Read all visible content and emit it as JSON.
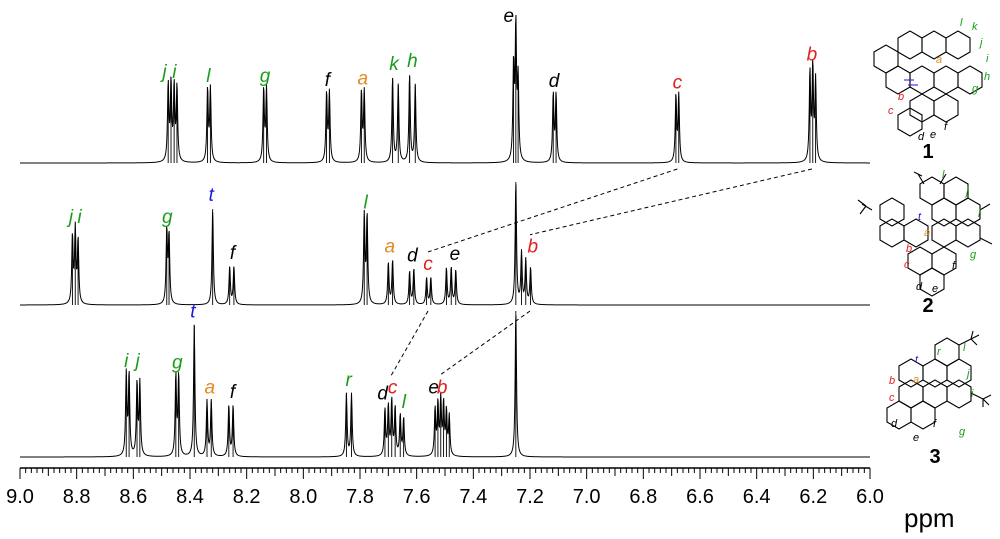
{
  "colors": {
    "black": "#000000",
    "orange": "#e08a1e",
    "red": "#e0201b",
    "green": "#1a9c1a",
    "blue": "#1a1adc"
  },
  "chart_data": {
    "type": "nmr_spectrum_stack",
    "x_axis": {
      "label": "ppm",
      "range": [
        9.0,
        6.0
      ],
      "reversed": true,
      "major_ticks": [
        9.0,
        8.8,
        8.6,
        8.4,
        8.2,
        8.0,
        7.8,
        7.6,
        7.4,
        7.2,
        7.0,
        6.8,
        6.6,
        6.4,
        6.2,
        6.0
      ],
      "tick_labels": [
        "9.0",
        "8.8",
        "8.6",
        "8.4",
        "8.2",
        "8.0",
        "7.8",
        "7.6",
        "7.4",
        "7.2",
        "7.0",
        "6.8",
        "6.6",
        "6.4",
        "6.2",
        "6.0"
      ],
      "minor_tick_step": 0.02
    },
    "series": [
      {
        "name": "1",
        "peaks": [
          {
            "ppm": 8.477,
            "h": 0.58
          },
          {
            "ppm": 8.467,
            "h": 0.58
          },
          {
            "ppm": 8.456,
            "h": 0.56
          },
          {
            "ppm": 8.446,
            "h": 0.56
          },
          {
            "ppm": 8.338,
            "h": 0.55
          },
          {
            "ppm": 8.328,
            "h": 0.55
          },
          {
            "ppm": 8.14,
            "h": 0.55
          },
          {
            "ppm": 8.13,
            "h": 0.55
          },
          {
            "ppm": 7.918,
            "h": 0.52
          },
          {
            "ppm": 7.908,
            "h": 0.52
          },
          {
            "ppm": 7.795,
            "h": 0.53
          },
          {
            "ppm": 7.785,
            "h": 0.53
          },
          {
            "ppm": 7.685,
            "h": 0.64
          },
          {
            "ppm": 7.665,
            "h": 0.58
          },
          {
            "ppm": 7.625,
            "h": 0.66
          },
          {
            "ppm": 7.605,
            "h": 0.58
          },
          {
            "ppm": 7.258,
            "h": 0.71
          },
          {
            "ppm": 7.25,
            "h": 1.0
          },
          {
            "ppm": 7.242,
            "h": 0.6
          },
          {
            "ppm": 7.118,
            "h": 0.51
          },
          {
            "ppm": 7.108,
            "h": 0.51
          },
          {
            "ppm": 6.685,
            "h": 0.5
          },
          {
            "ppm": 6.675,
            "h": 0.5
          },
          {
            "ppm": 6.212,
            "h": 0.67
          },
          {
            "ppm": 6.202,
            "h": 0.71
          },
          {
            "ppm": 6.192,
            "h": 0.61
          }
        ],
        "labels": [
          {
            "text": "j",
            "ppm": 8.49,
            "color": "green"
          },
          {
            "text": "i",
            "ppm": 8.455,
            "color": "green"
          },
          {
            "text": "l",
            "ppm": 8.335,
            "color": "green"
          },
          {
            "text": "g",
            "ppm": 8.135,
            "color": "green"
          },
          {
            "text": "f",
            "ppm": 7.915,
            "color": "black"
          },
          {
            "text": "a",
            "ppm": 7.79,
            "color": "orange"
          },
          {
            "text": "k",
            "ppm": 7.68,
            "color": "green"
          },
          {
            "text": "h",
            "ppm": 7.615,
            "color": "green"
          },
          {
            "text": "e",
            "ppm": 7.275,
            "color": "black"
          },
          {
            "text": "d",
            "ppm": 7.115,
            "color": "black"
          },
          {
            "text": "c",
            "ppm": 6.68,
            "color": "red"
          },
          {
            "text": "b",
            "ppm": 6.205,
            "color": "red"
          }
        ]
      },
      {
        "name": "2",
        "peaks": [
          {
            "ppm": 8.815,
            "h": 0.55
          },
          {
            "ppm": 8.805,
            "h": 0.6
          },
          {
            "ppm": 8.795,
            "h": 0.52
          },
          {
            "ppm": 8.482,
            "h": 0.6
          },
          {
            "ppm": 8.474,
            "h": 0.56
          },
          {
            "ppm": 8.32,
            "h": 0.78
          },
          {
            "ppm": 8.26,
            "h": 0.31
          },
          {
            "ppm": 8.245,
            "h": 0.31
          },
          {
            "ppm": 7.785,
            "h": 0.72
          },
          {
            "ppm": 7.775,
            "h": 0.72
          },
          {
            "ppm": 7.7,
            "h": 0.34
          },
          {
            "ppm": 7.685,
            "h": 0.36
          },
          {
            "ppm": 7.625,
            "h": 0.27
          },
          {
            "ppm": 7.61,
            "h": 0.29
          },
          {
            "ppm": 7.565,
            "h": 0.22
          },
          {
            "ppm": 7.55,
            "h": 0.22
          },
          {
            "ppm": 7.495,
            "h": 0.3
          },
          {
            "ppm": 7.478,
            "h": 0.3
          },
          {
            "ppm": 7.462,
            "h": 0.28
          },
          {
            "ppm": 7.25,
            "h": 1.0
          },
          {
            "ppm": 7.23,
            "h": 0.42
          },
          {
            "ppm": 7.215,
            "h": 0.36
          },
          {
            "ppm": 7.198,
            "h": 0.3
          }
        ],
        "labels": [
          {
            "text": "j",
            "ppm": 8.82,
            "color": "green"
          },
          {
            "text": "i",
            "ppm": 8.79,
            "color": "green"
          },
          {
            "text": "g",
            "ppm": 8.48,
            "color": "green"
          },
          {
            "text": "t",
            "ppm": 8.325,
            "color": "blue"
          },
          {
            "text": "f",
            "ppm": 8.25,
            "color": "black"
          },
          {
            "text": "l",
            "ppm": 7.78,
            "color": "green"
          },
          {
            "text": "a",
            "ppm": 7.695,
            "color": "orange"
          },
          {
            "text": "d",
            "ppm": 7.615,
            "color": "black"
          },
          {
            "text": "c",
            "ppm": 7.56,
            "color": "red"
          },
          {
            "text": "e",
            "ppm": 7.465,
            "color": "black"
          },
          {
            "text": "b",
            "ppm": 7.19,
            "color": "red"
          }
        ]
      },
      {
        "name": "3",
        "peaks": [
          {
            "ppm": 8.625,
            "h": 0.56
          },
          {
            "ppm": 8.615,
            "h": 0.56
          },
          {
            "ppm": 8.587,
            "h": 0.5
          },
          {
            "ppm": 8.577,
            "h": 0.5
          },
          {
            "ppm": 8.45,
            "h": 0.55
          },
          {
            "ppm": 8.44,
            "h": 0.55
          },
          {
            "ppm": 8.385,
            "h": 0.9
          },
          {
            "ppm": 8.34,
            "h": 0.38
          },
          {
            "ppm": 8.325,
            "h": 0.38
          },
          {
            "ppm": 8.263,
            "h": 0.35
          },
          {
            "ppm": 8.248,
            "h": 0.35
          },
          {
            "ppm": 7.848,
            "h": 0.43
          },
          {
            "ppm": 7.83,
            "h": 0.43
          },
          {
            "ppm": 7.712,
            "h": 0.32
          },
          {
            "ppm": 7.7,
            "h": 0.34
          },
          {
            "ppm": 7.688,
            "h": 0.38
          },
          {
            "ppm": 7.676,
            "h": 0.33
          },
          {
            "ppm": 7.658,
            "h": 0.28
          },
          {
            "ppm": 7.646,
            "h": 0.26
          },
          {
            "ppm": 7.535,
            "h": 0.32
          },
          {
            "ppm": 7.525,
            "h": 0.35
          },
          {
            "ppm": 7.515,
            "h": 0.38
          },
          {
            "ppm": 7.505,
            "h": 0.35
          },
          {
            "ppm": 7.495,
            "h": 0.3
          },
          {
            "ppm": 7.485,
            "h": 0.27
          },
          {
            "ppm": 7.25,
            "h": 1.0
          }
        ],
        "labels": [
          {
            "text": "i",
            "ppm": 8.625,
            "color": "green"
          },
          {
            "text": "j",
            "ppm": 8.585,
            "color": "green"
          },
          {
            "text": "g",
            "ppm": 8.445,
            "color": "green"
          },
          {
            "text": "t",
            "ppm": 8.39,
            "color": "blue"
          },
          {
            "text": "a",
            "ppm": 8.33,
            "color": "orange"
          },
          {
            "text": "f",
            "ppm": 8.25,
            "color": "black"
          },
          {
            "text": "r",
            "ppm": 7.84,
            "color": "green"
          },
          {
            "text": "d",
            "ppm": 7.72,
            "color": "black"
          },
          {
            "text": "c",
            "ppm": 7.685,
            "color": "red"
          },
          {
            "text": "l",
            "ppm": 7.645,
            "color": "green"
          },
          {
            "text": "e",
            "ppm": 7.54,
            "color": "black"
          },
          {
            "text": "b",
            "ppm": 7.51,
            "color": "red"
          }
        ]
      }
    ],
    "correlations": [
      {
        "from_series": "1",
        "to_series": "2",
        "label": "c",
        "from_ppm": 6.68,
        "to_ppm": 7.56
      },
      {
        "from_series": "1",
        "to_series": "2",
        "label": "b",
        "from_ppm": 6.205,
        "to_ppm": 7.2
      },
      {
        "from_series": "2",
        "to_series": "3",
        "label": "c",
        "from_ppm": 7.56,
        "to_ppm": 7.69
      },
      {
        "from_series": "2",
        "to_series": "3",
        "label": "b",
        "from_ppm": 7.2,
        "to_ppm": 7.52
      }
    ]
  },
  "structures": [
    {
      "compound": "1",
      "letters": [
        {
          "text": "l",
          "color": "green"
        },
        {
          "text": "k",
          "color": "green"
        },
        {
          "text": "j",
          "color": "green"
        },
        {
          "text": "i",
          "color": "green"
        },
        {
          "text": "h",
          "color": "green"
        },
        {
          "text": "g",
          "color": "green"
        },
        {
          "text": "a",
          "color": "orange"
        },
        {
          "text": "b",
          "color": "red"
        },
        {
          "text": "c",
          "color": "red"
        },
        {
          "text": "d",
          "color": "black"
        },
        {
          "text": "e",
          "color": "black"
        },
        {
          "text": "f",
          "color": "black"
        }
      ]
    },
    {
      "compound": "2",
      "letters": [
        {
          "text": "l",
          "color": "green"
        },
        {
          "text": "j",
          "color": "green"
        },
        {
          "text": "t",
          "color": "blue"
        },
        {
          "text": "i",
          "color": "green"
        },
        {
          "text": "a",
          "color": "orange"
        },
        {
          "text": "g",
          "color": "green"
        },
        {
          "text": "b",
          "color": "red"
        },
        {
          "text": "c",
          "color": "red"
        },
        {
          "text": "f",
          "color": "black"
        },
        {
          "text": "d",
          "color": "black"
        },
        {
          "text": "e",
          "color": "black"
        }
      ]
    },
    {
      "compound": "3",
      "letters": [
        {
          "text": "r",
          "color": "green"
        },
        {
          "text": "l",
          "color": "green"
        },
        {
          "text": "t",
          "color": "blue"
        },
        {
          "text": "b",
          "color": "red"
        },
        {
          "text": "a",
          "color": "orange"
        },
        {
          "text": "j",
          "color": "green"
        },
        {
          "text": "c",
          "color": "red"
        },
        {
          "text": "i",
          "color": "green"
        },
        {
          "text": "d",
          "color": "black"
        },
        {
          "text": "f",
          "color": "black"
        },
        {
          "text": "e",
          "color": "black"
        },
        {
          "text": "g",
          "color": "green"
        }
      ]
    }
  ]
}
